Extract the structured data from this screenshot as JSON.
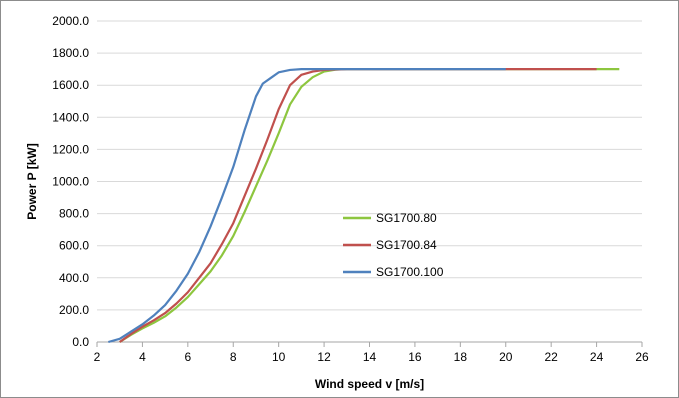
{
  "chart_data": {
    "type": "line",
    "xlabel": "Wind speed v [m/s]",
    "ylabel": "Power P [kW]",
    "xlim": [
      2,
      26
    ],
    "ylim": [
      0,
      2000
    ],
    "x_ticks": [
      "2",
      "4",
      "6",
      "8",
      "10",
      "12",
      "14",
      "16",
      "18",
      "20",
      "22",
      "24",
      "26"
    ],
    "y_ticks": [
      "0.0",
      "200.0",
      "400.0",
      "600.0",
      "800.0",
      "1000.0",
      "1200.0",
      "1400.0",
      "1600.0",
      "1800.0",
      "2000.0"
    ],
    "grid": "horizontal",
    "legend_placement": "center-right",
    "series": [
      {
        "name": "SG1700.80",
        "color": "#8dc63f",
        "x": [
          3,
          3.5,
          4,
          4.5,
          5,
          5.5,
          6,
          6.5,
          7,
          7.5,
          8,
          8.5,
          9,
          9.5,
          10,
          10.5,
          11,
          11.5,
          12,
          12.5,
          13,
          14,
          16,
          18,
          20,
          22,
          24,
          25
        ],
        "y": [
          0,
          45,
          85,
          120,
          160,
          215,
          280,
          360,
          440,
          540,
          660,
          810,
          970,
          1130,
          1300,
          1480,
          1590,
          1650,
          1685,
          1697,
          1700,
          1700,
          1700,
          1700,
          1700,
          1700,
          1700,
          1700
        ]
      },
      {
        "name": "SG1700.84",
        "color": "#c0504d",
        "x": [
          3,
          3.5,
          4,
          4.5,
          5,
          5.5,
          6,
          6.5,
          7,
          7.5,
          8,
          8.5,
          9,
          9.5,
          10,
          10.5,
          11,
          11.5,
          12,
          12.5,
          13,
          14,
          16,
          18,
          20,
          22,
          24
        ],
        "y": [
          0,
          50,
          95,
          135,
          180,
          240,
          310,
          400,
          490,
          610,
          740,
          910,
          1080,
          1260,
          1450,
          1600,
          1665,
          1685,
          1695,
          1698,
          1700,
          1700,
          1700,
          1700,
          1700,
          1700,
          1700
        ]
      },
      {
        "name": "SG1700.100",
        "color": "#4f81bd",
        "x": [
          2.5,
          3,
          3.5,
          4,
          4.5,
          5,
          5.5,
          6,
          6.5,
          7,
          7.5,
          8,
          8.5,
          9,
          9.3,
          9.7,
          10,
          10.5,
          11,
          11.5,
          12,
          12.5,
          13,
          14,
          16,
          18,
          20
        ],
        "y": [
          0,
          20,
          65,
          110,
          165,
          230,
          320,
          425,
          560,
          720,
          900,
          1090,
          1320,
          1530,
          1610,
          1650,
          1680,
          1695,
          1700,
          1700,
          1700,
          1700,
          1700,
          1700,
          1700,
          1700,
          1700
        ]
      }
    ]
  }
}
